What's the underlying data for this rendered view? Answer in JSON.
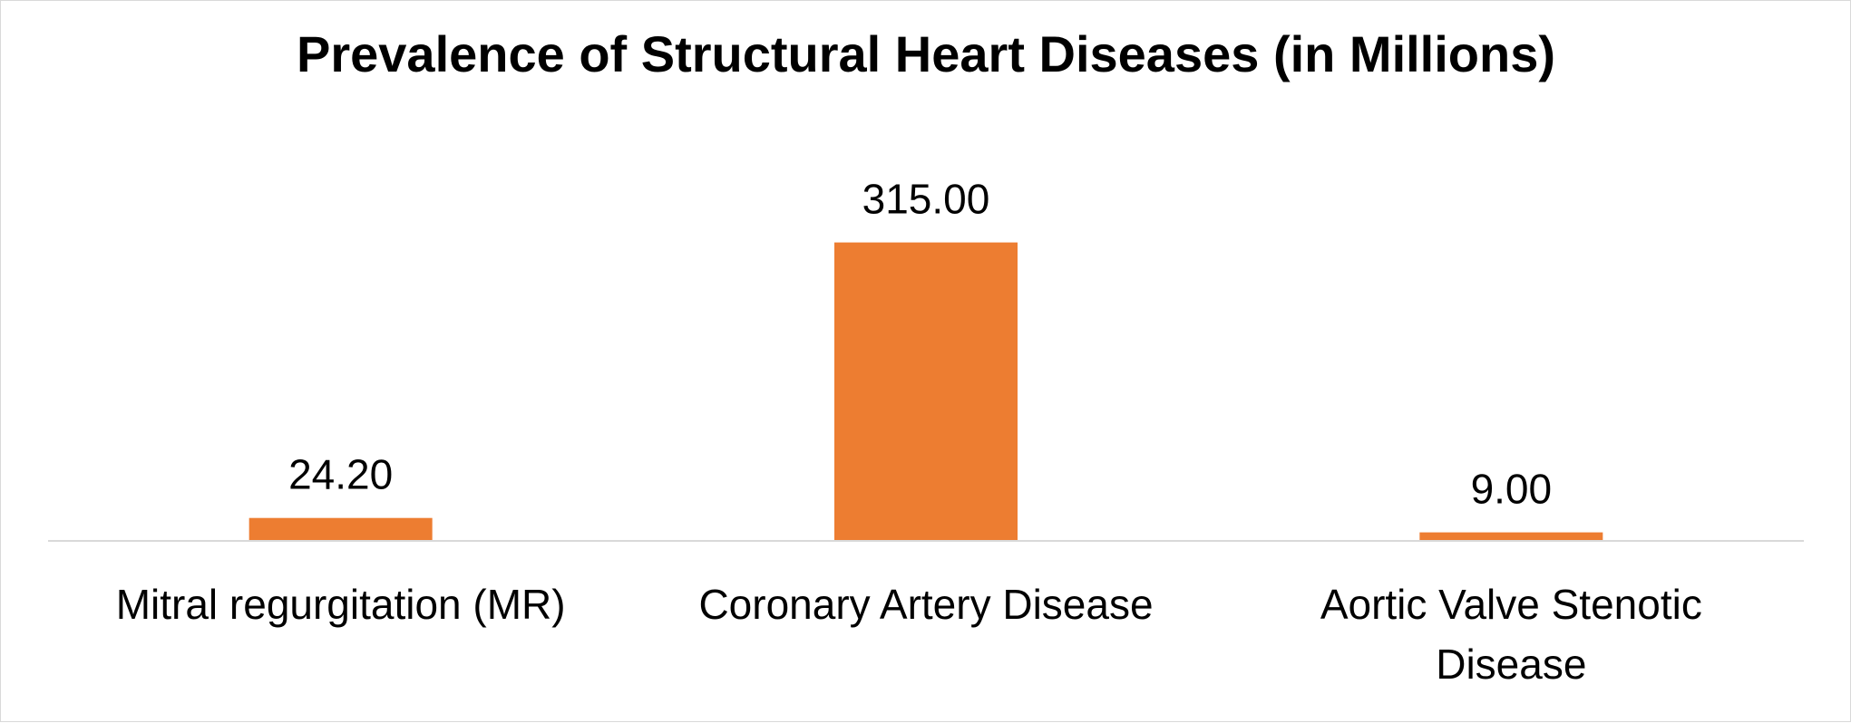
{
  "chart_data": {
    "type": "bar",
    "title": "Prevalence of Structural Heart Diseases (in Millions)",
    "categories": [
      [
        "Mitral regurgitation (MR)"
      ],
      [
        "Coronary Artery Disease"
      ],
      [
        "Aortic Valve Stenotic",
        "Disease"
      ]
    ],
    "values": [
      24.2,
      315.0,
      9.0
    ],
    "data_labels": [
      "24.20",
      "315.00",
      "9.00"
    ],
    "xlabel": "",
    "ylabel": "",
    "ylim": [
      0,
      350
    ],
    "grid": false,
    "legend": "none",
    "bar_color": "#ED7D31",
    "axis_color": "#d9d9d9"
  }
}
